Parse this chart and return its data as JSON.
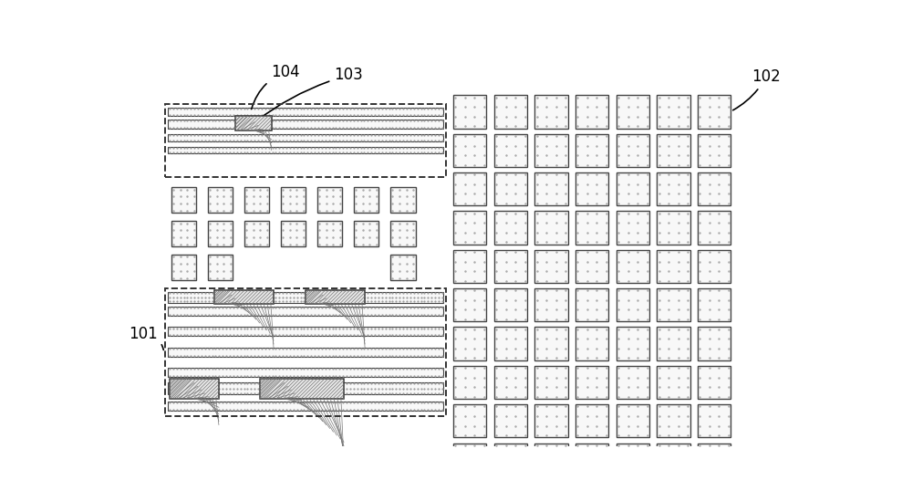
{
  "bg_color": "#ffffff",
  "fig_width": 10.0,
  "fig_height": 5.49,
  "dpi": 100,
  "lc": "#333333",
  "dotfill": "#f5f5f5",
  "xfill": "#e0e0e0"
}
